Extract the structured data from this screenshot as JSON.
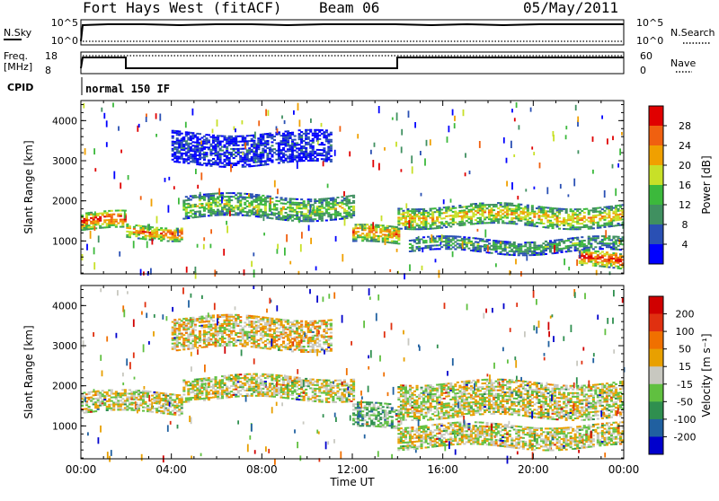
{
  "header": {
    "station": "Fort Hays West (fitACF)",
    "beam": "Beam 06",
    "date": "05/May/2011"
  },
  "status_panels": {
    "nsky_label": "N.Sky",
    "nsearch_label": "N.Search",
    "noise_ticks": [
      "10^5",
      "10^0"
    ],
    "freq_label_top": "Freq.",
    "freq_label_bottom": "[MHz]",
    "freq_ticks": [
      "18",
      "8"
    ],
    "nave_label": "Nave",
    "nave_ticks": [
      "60",
      "0"
    ],
    "cpid_label": "CPID",
    "cpid_value": "normal 150 IF"
  },
  "chart_data": [
    {
      "type": "heatmap",
      "name": "power",
      "ylabel": "Slant Range [km]",
      "ylim": [
        180,
        4500
      ],
      "yticks": [
        "1000",
        "2000",
        "3000",
        "4000"
      ],
      "xlim": [
        "00:00",
        "24:00"
      ],
      "colorbar_label": "Power [dB]",
      "colorbar_ticks": [
        "4",
        "8",
        "12",
        "16",
        "20",
        "24",
        "28"
      ],
      "colors": [
        "#0000ff",
        "#2a50b4",
        "#409060",
        "#3cb93c",
        "#c8e028",
        "#f0a000",
        "#f06010",
        "#e00000"
      ],
      "bands": [
        {
          "from_h": 0.0,
          "to_h": 2.0,
          "range_km": [
            1250,
            1700
          ],
          "level": 0.9
        },
        {
          "from_h": 2.0,
          "to_h": 4.5,
          "range_km": [
            1050,
            1400
          ],
          "level": 0.85
        },
        {
          "from_h": 4.5,
          "to_h": 12.0,
          "range_km": [
            1550,
            2100
          ],
          "level": 0.55
        },
        {
          "from_h": 12.0,
          "to_h": 14.0,
          "range_km": [
            900,
            1350
          ],
          "level": 0.8
        },
        {
          "from_h": 14.0,
          "to_h": 24.0,
          "range_km": [
            1350,
            1850
          ],
          "level": 0.7
        },
        {
          "from_h": 4.0,
          "to_h": 11.0,
          "range_km": [
            2900,
            3700
          ],
          "level": 0.15
        },
        {
          "from_h": 14.5,
          "to_h": 24.0,
          "range_km": [
            700,
            1050
          ],
          "level": 0.4
        },
        {
          "from_h": 22.0,
          "to_h": 24.0,
          "range_km": [
            300,
            700
          ],
          "level": 0.95
        }
      ]
    },
    {
      "type": "heatmap",
      "name": "velocity",
      "ylabel": "Slant Range [km]",
      "ylim": [
        180,
        4500
      ],
      "yticks": [
        "1000",
        "2000",
        "3000",
        "4000"
      ],
      "xlim": [
        "00:00",
        "24:00"
      ],
      "xticks": [
        "00:00",
        "04:00",
        "08:00",
        "12:00",
        "16:00",
        "20:00",
        "00:00"
      ],
      "xlabel": "Time UT",
      "colorbar_label": "Velocity [m s⁻¹]",
      "colorbar_ticks": [
        "200",
        "100",
        "50",
        "15",
        "-15",
        "-50",
        "-100",
        "-200"
      ],
      "colors": [
        "#0000cc",
        "#2060a0",
        "#2f8f4f",
        "#60c040",
        "#c8c8c0",
        "#e8a000",
        "#f07000",
        "#e03010",
        "#d00000"
      ],
      "bands": [
        {
          "from_h": 0.0,
          "to_h": 4.5,
          "range_km": [
            1300,
            1800
          ],
          "level": 0.5
        },
        {
          "from_h": 4.5,
          "to_h": 12.0,
          "range_km": [
            1650,
            2200
          ],
          "level": 0.5
        },
        {
          "from_h": 4.0,
          "to_h": 11.0,
          "range_km": [
            2900,
            3700
          ],
          "level": 0.55
        },
        {
          "from_h": 12.0,
          "to_h": 14.0,
          "range_km": [
            900,
            1500
          ],
          "level": 0.35
        },
        {
          "from_h": 14.0,
          "to_h": 24.0,
          "range_km": [
            1200,
            2100
          ],
          "level": 0.5
        },
        {
          "from_h": 14.0,
          "to_h": 24.0,
          "range_km": [
            450,
            1000
          ],
          "level": 0.5
        }
      ]
    }
  ]
}
